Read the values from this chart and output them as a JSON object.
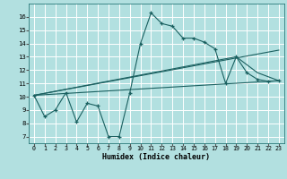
{
  "xlabel": "Humidex (Indice chaleur)",
  "bg_color": "#b2e0e0",
  "grid_color": "#ffffff",
  "line_color": "#1a6060",
  "xlim": [
    -0.5,
    23.5
  ],
  "ylim": [
    6.5,
    17.0
  ],
  "xticks": [
    0,
    1,
    2,
    3,
    4,
    5,
    6,
    7,
    8,
    9,
    10,
    11,
    12,
    13,
    14,
    15,
    16,
    17,
    18,
    19,
    20,
    21,
    22,
    23
  ],
  "yticks": [
    7,
    8,
    9,
    10,
    11,
    12,
    13,
    14,
    15,
    16
  ],
  "line1_x": [
    0,
    1,
    2,
    3,
    4,
    5,
    6,
    7,
    8,
    9,
    10,
    11,
    12,
    13,
    14,
    15,
    16,
    17,
    18,
    19,
    20,
    21,
    22,
    23
  ],
  "line1_y": [
    10.1,
    8.5,
    9.0,
    10.3,
    8.1,
    9.5,
    9.3,
    7.0,
    7.0,
    10.3,
    14.0,
    16.3,
    15.5,
    15.3,
    14.4,
    14.4,
    14.1,
    13.6,
    11.0,
    13.0,
    11.8,
    11.3,
    11.15,
    11.2
  ],
  "line2_x": [
    0,
    23
  ],
  "line2_y": [
    10.1,
    11.2
  ],
  "line3_x": [
    0,
    23
  ],
  "line3_y": [
    10.1,
    13.5
  ],
  "line4_x": [
    0,
    19,
    21,
    23
  ],
  "line4_y": [
    10.1,
    13.0,
    11.8,
    11.2
  ]
}
